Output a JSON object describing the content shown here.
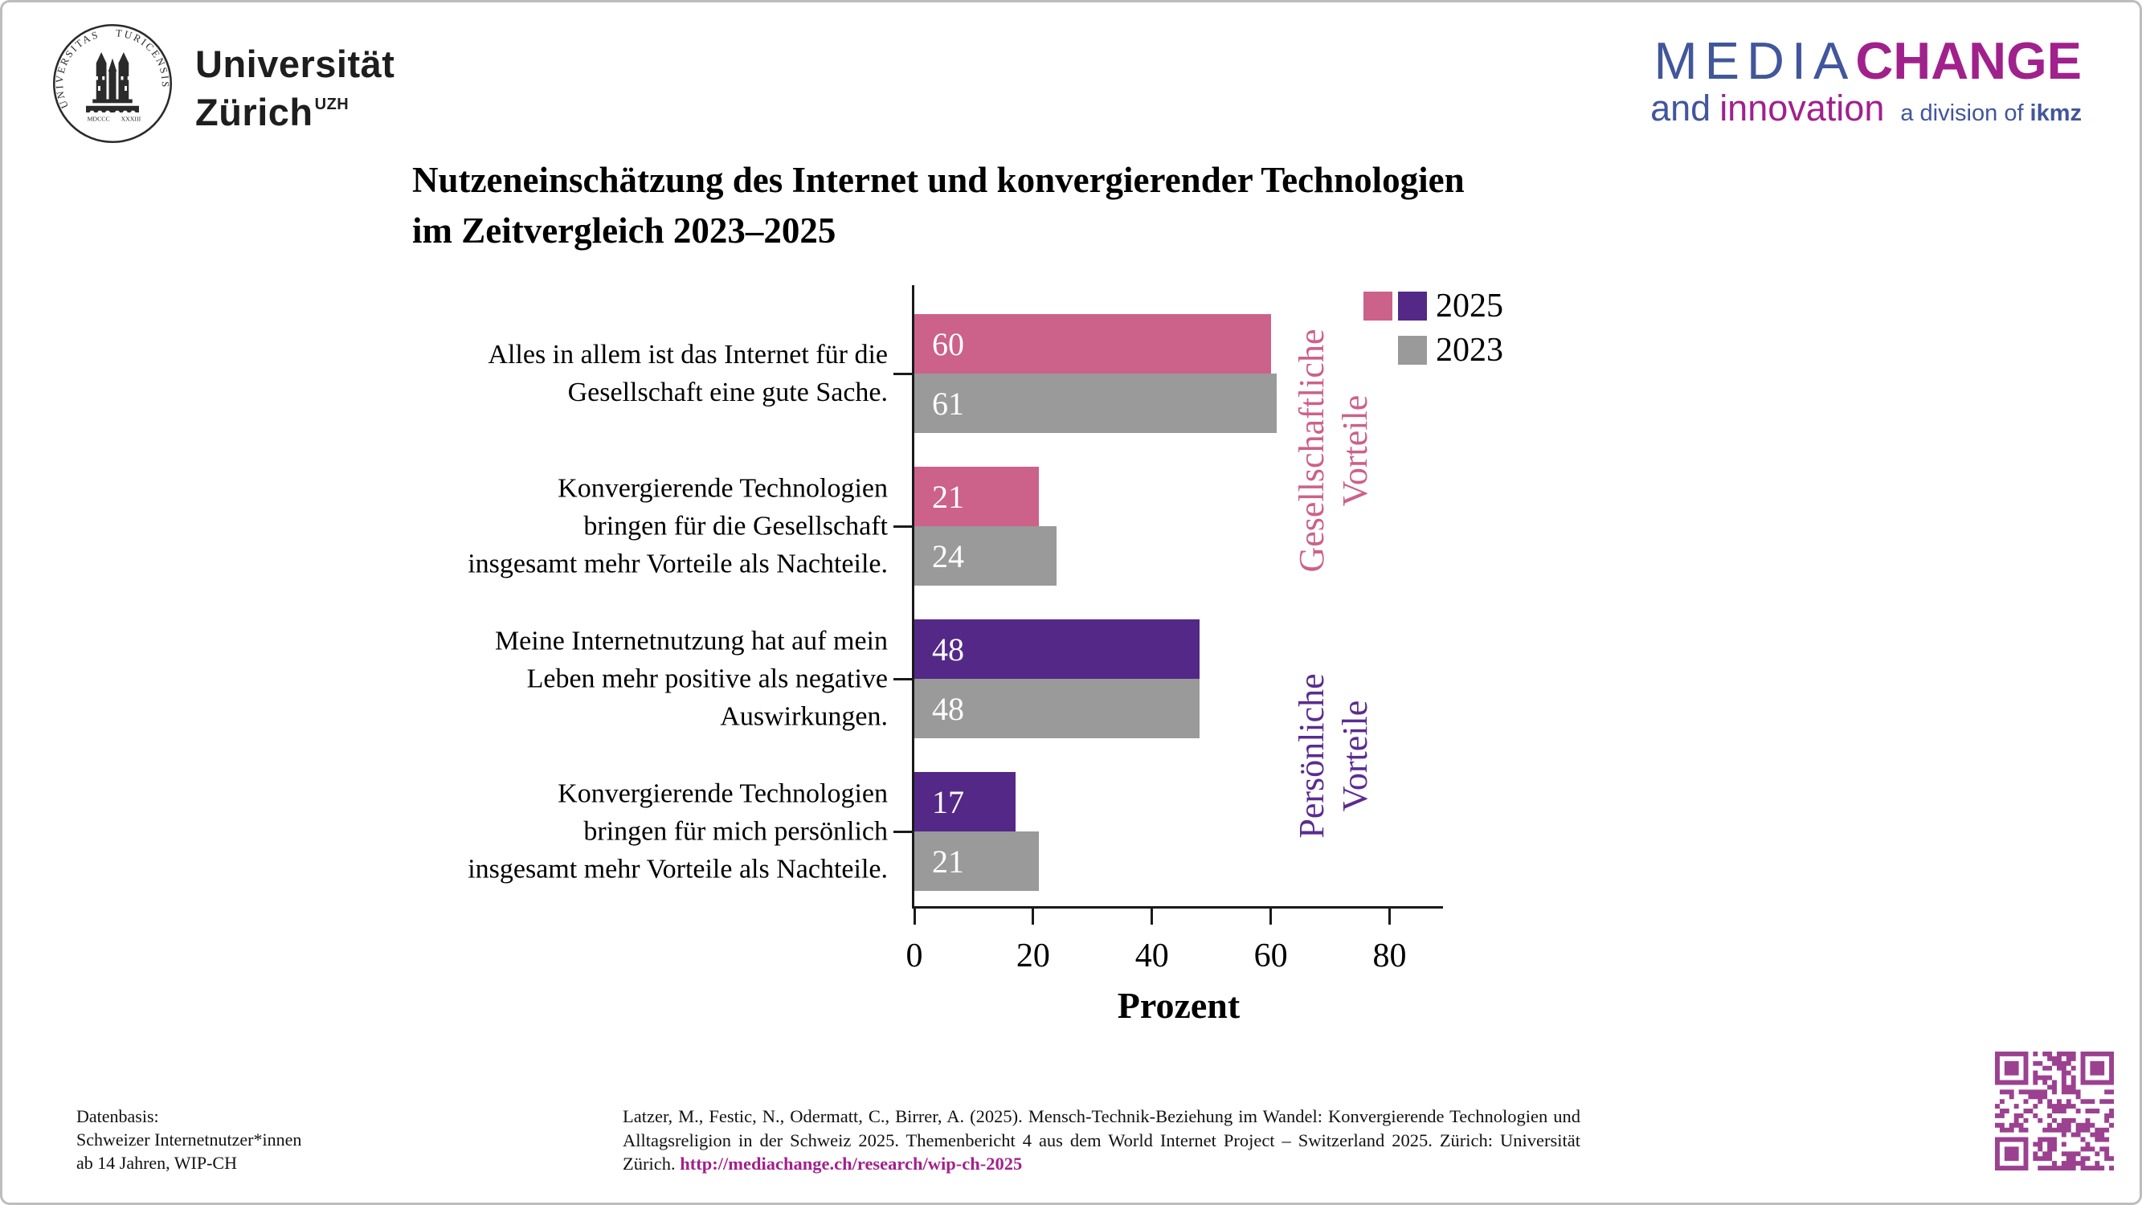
{
  "colors": {
    "pink": "#cc6189",
    "purple": "#542887",
    "gray": "#9a9a9a",
    "magenta": "#a1218c",
    "blue": "#41569b",
    "qr": "#9b4190"
  },
  "logos": {
    "uzh": {
      "seal_left": "UNIVERSITAS",
      "seal_right": "TURICENSIS",
      "seal_year_left": "MDCCC",
      "seal_year_right": "XXXIII",
      "wordmark_line1": "Universität",
      "wordmark_line2": "Zürich",
      "wordmark_sup": "UZH"
    },
    "mediachange": {
      "media": "MEDIA",
      "change": "CHANGE",
      "and": "and",
      "innovation": "innovation",
      "division": "a division of",
      "ikmz": "ikmz"
    }
  },
  "chart_data": {
    "type": "bar",
    "orientation": "horizontal",
    "title": "Nutzeneinschätzung des Internet und konvergierender Technologien im Zeitvergleich 2023–2025",
    "title_lines": [
      "Nutzeneinschätzung des Internet und konvergierender Technologien",
      "im Zeitvergleich 2023–2025"
    ],
    "xlabel": "Prozent",
    "ylabel": "",
    "xlim": [
      0,
      89
    ],
    "xticks": [
      0,
      20,
      40,
      60,
      80
    ],
    "grid": false,
    "legend_position": "top-right",
    "series_names": [
      "2025",
      "2023"
    ],
    "color_2023": "#9a9a9a",
    "groups": [
      {
        "label": "Alles in allem ist das Internet für die Gesellschaft eine gute Sache.",
        "lines": [
          "Alles in allem ist das Internet für die",
          "Gesellschaft eine gute Sache."
        ],
        "section": "Gesellschaftliche Vorteile",
        "color_2025": "#cc6189",
        "values": {
          "2025": 60,
          "2023": 61
        }
      },
      {
        "label": "Konvergierende Technologien bringen für die Gesellschaft insgesamt mehr Vorteile als Nachteile.",
        "lines": [
          "Konvergierende Technologien",
          "bringen für die Gesellschaft",
          "insgesamt mehr Vorteile als Nachteile."
        ],
        "section": "Gesellschaftliche Vorteile",
        "color_2025": "#cc6189",
        "values": {
          "2025": 21,
          "2023": 24
        }
      },
      {
        "label": "Meine Internetnutzung hat auf mein Leben mehr positive als negative Auswirkungen.",
        "lines": [
          "Meine Internetnutzung hat auf mein",
          "Leben mehr positive als negative",
          "Auswirkungen."
        ],
        "section": "Persönliche Vorteile",
        "color_2025": "#542887",
        "values": {
          "2025": 48,
          "2023": 48
        }
      },
      {
        "label": "Konvergierende Technologien bringen für mich persönlich insgesamt mehr Vorteile als Nachteile.",
        "lines": [
          "Konvergierende Technologien",
          "bringen für mich persönlich",
          "insgesamt mehr Vorteile als Nachteile."
        ],
        "section": "Persönliche Vorteile",
        "color_2025": "#542887",
        "values": {
          "2025": 17,
          "2023": 21
        }
      }
    ],
    "sections": [
      {
        "label": "Gesellschaftliche Vorteile",
        "lines": [
          "Gesellschaftliche",
          "Vorteile"
        ],
        "color": "#cc6189"
      },
      {
        "label": "Persönliche Vorteile",
        "lines": [
          "Persönliche",
          "Vorteile"
        ],
        "color": "#5b2c90"
      }
    ],
    "legend": [
      {
        "label": "2025",
        "swatches": [
          "#cc6189",
          "#542887"
        ]
      },
      {
        "label": "2023",
        "swatches": [
          null,
          "#9a9a9a"
        ]
      }
    ]
  },
  "footer": {
    "datenbasis": [
      "Datenbasis:",
      "Schweizer Internetnutzer*innen",
      "ab 14 Jahren, WIP-CH"
    ],
    "citation": {
      "text": "Latzer, M., Festic, N., Odermatt, C., Birrer, A. (2025). Mensch-Technik-Beziehung im Wandel: Konvergierende Technologien und Alltagsreligion in der Schweiz 2025. Themenbericht 4 aus dem World Internet Project – Switzerland 2025. Zürich: Universität Zürich. ",
      "url": "http://mediachange.ch/research/wip-ch-2025"
    }
  }
}
